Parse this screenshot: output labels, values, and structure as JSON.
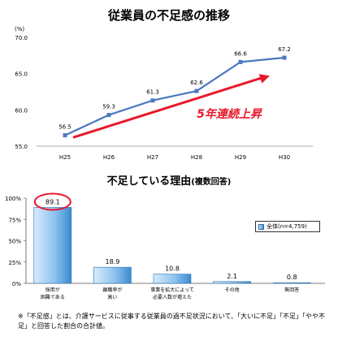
{
  "chart_data": [
    {
      "type": "line",
      "title": "従業員の不足感の推移",
      "unit": "(%)",
      "categories": [
        "H25",
        "H26",
        "H27",
        "H28",
        "H29",
        "H30"
      ],
      "series": [
        {
          "values": [
            56.5,
            59.3,
            61.3,
            62.6,
            66.6,
            67.2
          ]
        }
      ],
      "ylim": [
        55.0,
        70.0
      ],
      "yticks": [
        "70.0",
        "65.0",
        "60.0",
        "55.0"
      ],
      "annotation": "5年連続上昇",
      "colors": {
        "line": "#4a78c2",
        "arrow": "#e8182a",
        "annotation": "#e8182a"
      }
    },
    {
      "type": "bar",
      "title": "不足している理由",
      "subtitle": "(複数回答)",
      "categories": [
        "採用が\n困難である",
        "離職率が\n高い",
        "事業を拡大によって\n必要人数が増えた",
        "その他",
        "無回答"
      ],
      "series": [
        {
          "name": "全体(n=4,759)",
          "values": [
            89.1,
            18.9,
            10.8,
            2.1,
            0.8
          ]
        }
      ],
      "ylim": [
        0,
        100
      ],
      "yticks": [
        "100%",
        "75%",
        "50%",
        "25%",
        "0%"
      ],
      "colors": {
        "bar_light": "#d6ecfc",
        "bar_dark": "#3b8bd3",
        "highlight": "#e8182a"
      }
    }
  ],
  "footnote": "※「不足感」とは、介護サービスに従事する従業員の過不足状況において、「大いに不足」「不足」「やや不足」と回答した割合の合計値。"
}
